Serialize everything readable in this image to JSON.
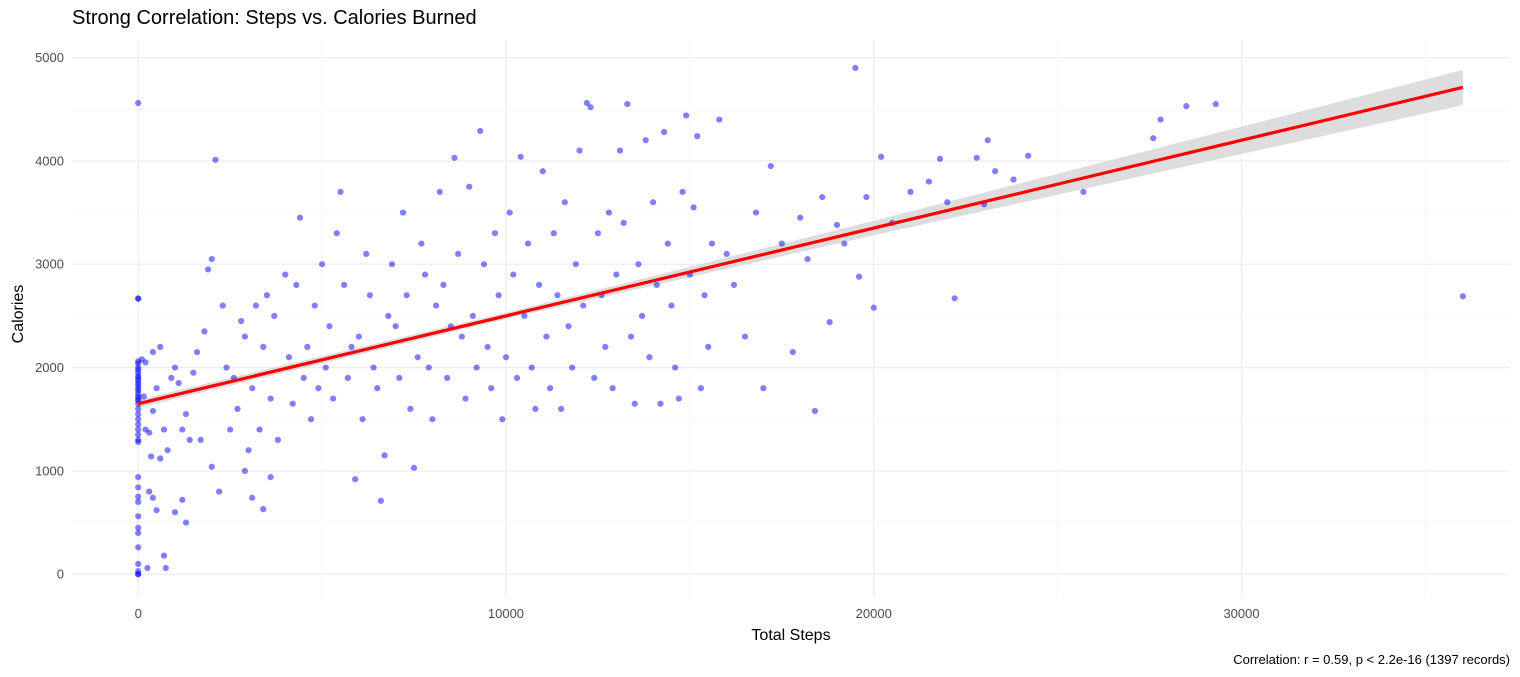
{
  "chart_data": {
    "type": "scatter",
    "title": "Strong Correlation: Steps vs. Calories Burned",
    "xlabel": "Total Steps",
    "ylabel": "Calories",
    "caption": "Correlation: r = 0.59, p < 2.2e-16 (1397 records)",
    "xlim": [
      -1800,
      37300
    ],
    "ylim": [
      -230,
      5170
    ],
    "x_ticks": [
      0,
      10000,
      20000,
      30000
    ],
    "x_tick_labels": [
      "0",
      "10000",
      "20000",
      "30000"
    ],
    "y_ticks": [
      0,
      1000,
      2000,
      3000,
      4000,
      5000
    ],
    "y_tick_labels": [
      "0",
      "1000",
      "2000",
      "3000",
      "4000",
      "5000"
    ],
    "grid": true,
    "point_color": "#0000ff",
    "point_opacity": 0.5,
    "fit": {
      "method": "linear",
      "x_range": [
        0,
        36019
      ],
      "intercept": 1650,
      "slope": 0.085,
      "line_color": "#ff0000",
      "band_color": "#d9d9d9",
      "band": [
        {
          "x": 0,
          "lower": 1610,
          "upper": 1690
        },
        {
          "x": 10000,
          "lower": 2470,
          "upper": 2530
        },
        {
          "x": 20000,
          "lower": 3280,
          "upper": 3420
        },
        {
          "x": 36019,
          "lower": 4540,
          "upper": 4880
        }
      ]
    },
    "points": [
      [
        0,
        4560
      ],
      [
        0,
        2670
      ],
      [
        0,
        2665
      ],
      [
        0,
        2060
      ],
      [
        0,
        2040
      ],
      [
        0,
        2000
      ],
      [
        0,
        1980
      ],
      [
        0,
        1950
      ],
      [
        0,
        1920
      ],
      [
        0,
        1900
      ],
      [
        0,
        1880
      ],
      [
        0,
        1850
      ],
      [
        0,
        1830
      ],
      [
        0,
        1800
      ],
      [
        0,
        1780
      ],
      [
        0,
        1750
      ],
      [
        0,
        1720
      ],
      [
        0,
        1700
      ],
      [
        0,
        1680
      ],
      [
        0,
        1650
      ],
      [
        0,
        1600
      ],
      [
        0,
        1550
      ],
      [
        0,
        1500
      ],
      [
        0,
        1450
      ],
      [
        0,
        1400
      ],
      [
        0,
        1350
      ],
      [
        0,
        1300
      ],
      [
        0,
        1280
      ],
      [
        0,
        940
      ],
      [
        0,
        840
      ],
      [
        0,
        750
      ],
      [
        0,
        700
      ],
      [
        0,
        560
      ],
      [
        0,
        450
      ],
      [
        0,
        400
      ],
      [
        0,
        260
      ],
      [
        0,
        100
      ],
      [
        0,
        30
      ],
      [
        0,
        0
      ],
      [
        0,
        0
      ],
      [
        100,
        2080
      ],
      [
        200,
        2050
      ],
      [
        150,
        1720
      ],
      [
        300,
        1370
      ],
      [
        350,
        1140
      ],
      [
        200,
        1400
      ],
      [
        400,
        2150
      ],
      [
        600,
        2200
      ],
      [
        500,
        1800
      ],
      [
        400,
        1580
      ],
      [
        300,
        800
      ],
      [
        400,
        740
      ],
      [
        500,
        620
      ],
      [
        700,
        1400
      ],
      [
        800,
        1200
      ],
      [
        700,
        180
      ],
      [
        750,
        60
      ],
      [
        250,
        60
      ],
      [
        900,
        1900
      ],
      [
        1000,
        2000
      ],
      [
        1100,
        1850
      ],
      [
        1200,
        1400
      ],
      [
        1300,
        1550
      ],
      [
        1400,
        1300
      ],
      [
        1000,
        600
      ],
      [
        1200,
        720
      ],
      [
        1300,
        500
      ],
      [
        600,
        1120
      ],
      [
        1500,
        1950
      ],
      [
        1600,
        2150
      ],
      [
        1700,
        1300
      ],
      [
        1800,
        2350
      ],
      [
        1900,
        2950
      ],
      [
        2000,
        3050
      ],
      [
        2100,
        4010
      ],
      [
        2000,
        1040
      ],
      [
        2200,
        800
      ],
      [
        2300,
        2600
      ],
      [
        2400,
        2000
      ],
      [
        2500,
        1400
      ],
      [
        2600,
        1900
      ],
      [
        2700,
        1600
      ],
      [
        2800,
        2450
      ],
      [
        2900,
        2300
      ],
      [
        3000,
        1200
      ],
      [
        3100,
        1800
      ],
      [
        3200,
        2600
      ],
      [
        3300,
        1400
      ],
      [
        3400,
        2200
      ],
      [
        3500,
        2700
      ],
      [
        3600,
        1700
      ],
      [
        3700,
        2500
      ],
      [
        3800,
        1300
      ],
      [
        2900,
        1000
      ],
      [
        3100,
        740
      ],
      [
        3400,
        630
      ],
      [
        3600,
        940
      ],
      [
        4000,
        2900
      ],
      [
        4100,
        2100
      ],
      [
        4200,
        1650
      ],
      [
        4300,
        2800
      ],
      [
        4400,
        3450
      ],
      [
        4500,
        1900
      ],
      [
        4600,
        2200
      ],
      [
        4700,
        1500
      ],
      [
        4800,
        2600
      ],
      [
        4900,
        1800
      ],
      [
        5000,
        3000
      ],
      [
        5100,
        2000
      ],
      [
        5200,
        2400
      ],
      [
        5300,
        1700
      ],
      [
        5400,
        3300
      ],
      [
        5500,
        3700
      ],
      [
        5600,
        2800
      ],
      [
        5700,
        1900
      ],
      [
        5800,
        2200
      ],
      [
        5900,
        920
      ],
      [
        6000,
        2300
      ],
      [
        6100,
        1500
      ],
      [
        6200,
        3100
      ],
      [
        6300,
        2700
      ],
      [
        6400,
        2000
      ],
      [
        6500,
        1800
      ],
      [
        6600,
        710
      ],
      [
        6700,
        1150
      ],
      [
        6800,
        2500
      ],
      [
        6900,
        3000
      ],
      [
        7000,
        2400
      ],
      [
        7100,
        1900
      ],
      [
        7200,
        3500
      ],
      [
        7300,
        2700
      ],
      [
        7400,
        1600
      ],
      [
        7500,
        1030
      ],
      [
        7600,
        2100
      ],
      [
        7700,
        3200
      ],
      [
        7800,
        2900
      ],
      [
        7900,
        2000
      ],
      [
        8000,
        1500
      ],
      [
        8100,
        2600
      ],
      [
        8200,
        3700
      ],
      [
        8300,
        2800
      ],
      [
        8400,
        1900
      ],
      [
        8500,
        2400
      ],
      [
        8600,
        4030
      ],
      [
        8700,
        3100
      ],
      [
        8800,
        2300
      ],
      [
        8900,
        1700
      ],
      [
        9000,
        3750
      ],
      [
        9100,
        2500
      ],
      [
        9200,
        2000
      ],
      [
        9300,
        4290
      ],
      [
        9400,
        3000
      ],
      [
        9500,
        2200
      ],
      [
        9600,
        1800
      ],
      [
        9700,
        3300
      ],
      [
        9800,
        2700
      ],
      [
        9900,
        1500
      ],
      [
        10000,
        2100
      ],
      [
        10100,
        3500
      ],
      [
        10200,
        2900
      ],
      [
        10300,
        1900
      ],
      [
        10400,
        4040
      ],
      [
        10500,
        2500
      ],
      [
        10600,
        3200
      ],
      [
        10700,
        2000
      ],
      [
        10800,
        1600
      ],
      [
        10900,
        2800
      ],
      [
        11000,
        3900
      ],
      [
        11100,
        2300
      ],
      [
        11200,
        1800
      ],
      [
        11300,
        3300
      ],
      [
        11400,
        2700
      ],
      [
        11500,
        1600
      ],
      [
        11600,
        3600
      ],
      [
        11700,
        2400
      ],
      [
        11800,
        2000
      ],
      [
        11900,
        3000
      ],
      [
        12000,
        4100
      ],
      [
        12100,
        2600
      ],
      [
        12200,
        4560
      ],
      [
        12300,
        4520
      ],
      [
        12400,
        1900
      ],
      [
        12500,
        3300
      ],
      [
        12600,
        2700
      ],
      [
        12700,
        2200
      ],
      [
        12800,
        3500
      ],
      [
        12900,
        1800
      ],
      [
        13000,
        2900
      ],
      [
        13100,
        4100
      ],
      [
        13200,
        3400
      ],
      [
        13300,
        4550
      ],
      [
        13400,
        2300
      ],
      [
        13500,
        1650
      ],
      [
        13600,
        3000
      ],
      [
        13700,
        2500
      ],
      [
        13800,
        4200
      ],
      [
        13900,
        2100
      ],
      [
        14000,
        3600
      ],
      [
        14100,
        2800
      ],
      [
        14200,
        1650
      ],
      [
        14300,
        4280
      ],
      [
        14400,
        3200
      ],
      [
        14500,
        2600
      ],
      [
        14600,
        2000
      ],
      [
        14700,
        1700
      ],
      [
        14800,
        3700
      ],
      [
        14900,
        4440
      ],
      [
        15000,
        2900
      ],
      [
        15100,
        3550
      ],
      [
        15200,
        4240
      ],
      [
        15300,
        1800
      ],
      [
        15400,
        2700
      ],
      [
        15500,
        2200
      ],
      [
        15600,
        3200
      ],
      [
        15800,
        4400
      ],
      [
        16000,
        3100
      ],
      [
        16200,
        2800
      ],
      [
        16500,
        2300
      ],
      [
        16800,
        3500
      ],
      [
        17000,
        1800
      ],
      [
        17200,
        3950
      ],
      [
        17500,
        3200
      ],
      [
        17800,
        2150
      ],
      [
        18000,
        3450
      ],
      [
        18200,
        3050
      ],
      [
        18400,
        1580
      ],
      [
        18600,
        3650
      ],
      [
        18800,
        2440
      ],
      [
        19000,
        3380
      ],
      [
        19200,
        3200
      ],
      [
        19500,
        4900
      ],
      [
        19600,
        2880
      ],
      [
        19800,
        3650
      ],
      [
        20000,
        2580
      ],
      [
        20200,
        4040
      ],
      [
        20500,
        3400
      ],
      [
        21000,
        3700
      ],
      [
        21500,
        3800
      ],
      [
        21800,
        4020
      ],
      [
        22000,
        3600
      ],
      [
        22200,
        2670
      ],
      [
        22800,
        4030
      ],
      [
        23000,
        3580
      ],
      [
        23100,
        4200
      ],
      [
        23300,
        3900
      ],
      [
        23800,
        3820
      ],
      [
        24200,
        4050
      ],
      [
        25700,
        3700
      ],
      [
        27600,
        4220
      ],
      [
        27800,
        4400
      ],
      [
        28500,
        4530
      ],
      [
        29300,
        4550
      ],
      [
        36019,
        2690
      ]
    ]
  }
}
